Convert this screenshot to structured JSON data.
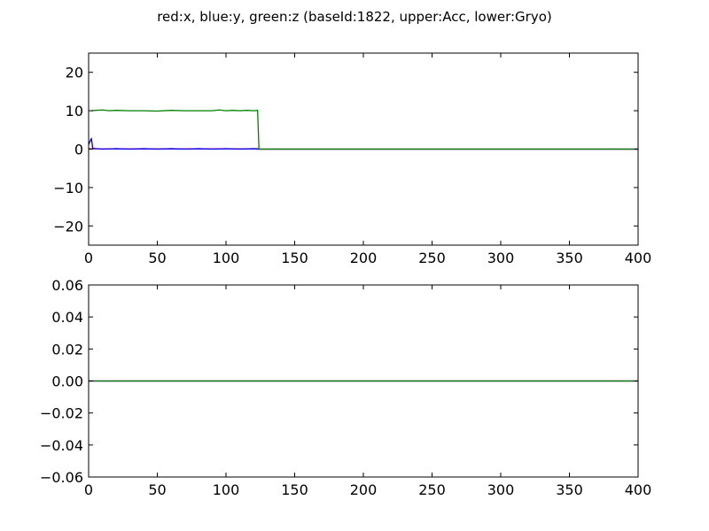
{
  "figure": {
    "title": "red:x, blue:y, green:z (baseId:1822, upper:Acc, lower:Gryo)"
  },
  "chart_data": [
    {
      "type": "line",
      "title": "",
      "xlabel": "",
      "ylabel": "",
      "xlim": [
        0,
        400
      ],
      "ylim": [
        -25,
        25
      ],
      "x_ticks": [
        0,
        50,
        100,
        150,
        200,
        250,
        300,
        350,
        400
      ],
      "y_ticks": [
        20,
        10,
        0,
        -10,
        -20
      ],
      "x_tick_labels": [
        "0",
        "50",
        "100",
        "150",
        "200",
        "250",
        "300",
        "350",
        "400"
      ],
      "y_tick_labels": [
        "20",
        "10",
        "0",
        "−10",
        "−20"
      ],
      "grid": false,
      "series": [
        {
          "color": "#ff0000",
          "x": [
            0,
            10,
            20,
            30,
            40,
            50,
            60,
            70,
            80,
            90,
            100,
            110,
            120,
            123,
            124,
            200,
            300,
            400
          ],
          "y": [
            0.1,
            0.05,
            0.1,
            0.05,
            0.1,
            0.05,
            0.1,
            0.05,
            0.1,
            0.05,
            0.1,
            0.05,
            0.1,
            0.1,
            0,
            0,
            0,
            0
          ]
        },
        {
          "color": "#0000ff",
          "x": [
            0,
            1,
            2,
            3,
            10,
            20,
            30,
            40,
            50,
            60,
            70,
            80,
            90,
            100,
            110,
            120,
            123,
            124,
            200,
            300,
            400
          ],
          "y": [
            1.2,
            2.0,
            2.8,
            0.2,
            0.0,
            0.1,
            0.0,
            0.1,
            0.0,
            0.1,
            0.0,
            0.1,
            0.0,
            0.1,
            0.0,
            0.1,
            0.0,
            0,
            0,
            0,
            0
          ]
        },
        {
          "color": "#008000",
          "x": [
            2,
            5,
            10,
            15,
            20,
            30,
            40,
            50,
            60,
            70,
            80,
            90,
            95,
            100,
            105,
            110,
            115,
            120,
            123,
            124,
            200,
            300,
            400
          ],
          "y": [
            10.0,
            10.1,
            10.2,
            10.0,
            10.1,
            10.0,
            10.0,
            9.9,
            10.1,
            10.0,
            10.0,
            10.0,
            10.2,
            10.0,
            10.1,
            10.0,
            10.1,
            10.0,
            10.1,
            0,
            0,
            0,
            0
          ]
        }
      ]
    },
    {
      "type": "line",
      "title": "",
      "xlabel": "",
      "ylabel": "",
      "xlim": [
        0,
        400
      ],
      "ylim": [
        -0.06,
        0.06
      ],
      "x_ticks": [
        0,
        50,
        100,
        150,
        200,
        250,
        300,
        350,
        400
      ],
      "y_ticks": [
        0.06,
        0.04,
        0.02,
        0.0,
        -0.02,
        -0.04,
        -0.06
      ],
      "x_tick_labels": [
        "0",
        "50",
        "100",
        "150",
        "200",
        "250",
        "300",
        "350",
        "400"
      ],
      "y_tick_labels": [
        "0.06",
        "0.04",
        "0.02",
        "0.00",
        "−0.02",
        "−0.04",
        "−0.06"
      ],
      "grid": false,
      "series": [
        {
          "color": "#ff0000",
          "x": [
            0,
            400
          ],
          "y": [
            0,
            0
          ]
        },
        {
          "color": "#0000ff",
          "x": [
            0,
            400
          ],
          "y": [
            0,
            0
          ]
        },
        {
          "color": "#008000",
          "x": [
            0,
            400
          ],
          "y": [
            0,
            0
          ]
        }
      ]
    }
  ]
}
